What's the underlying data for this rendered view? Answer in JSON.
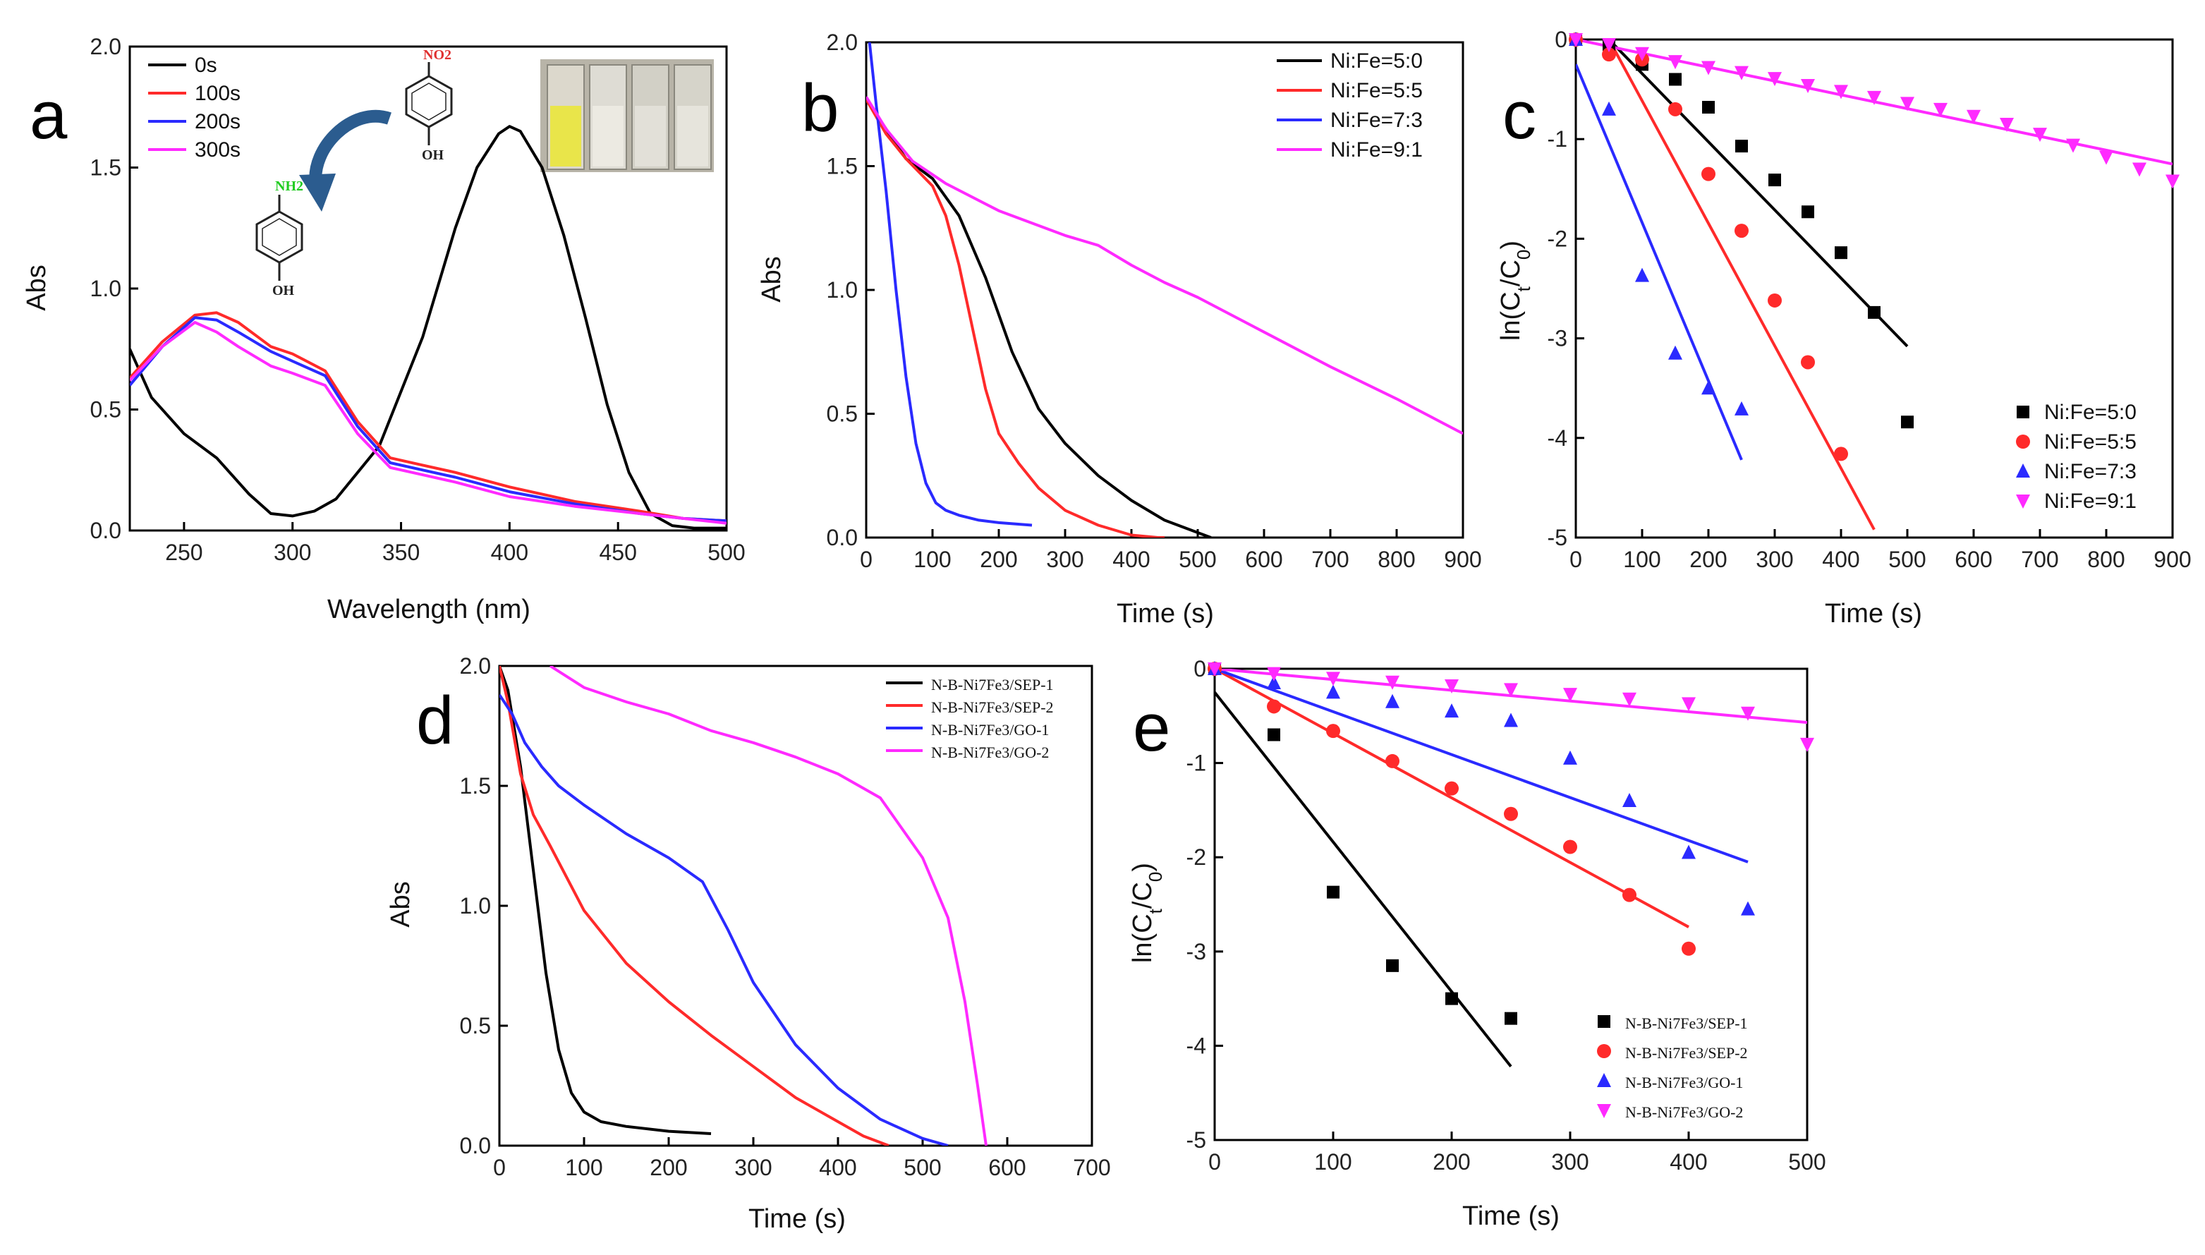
{
  "panels": {
    "a": {
      "letter": "a",
      "xlabel": "Wavelength (nm)",
      "ylabel": "Abs",
      "xlim": [
        225,
        500
      ],
      "ylim": [
        0,
        2.0
      ],
      "xticks": [
        "250",
        "300",
        "350",
        "400",
        "450",
        "500"
      ],
      "yticks": [
        "0.0",
        "0.5",
        "1.0",
        "1.5",
        "2.0"
      ],
      "legend": [
        "0s",
        "100s",
        "200s",
        "300s"
      ],
      "inset": {
        "reactant_group": "NO2",
        "product_group": "NH2",
        "hydroxyl_label": "OH",
        "arrow_color": "#2b5c8f"
      }
    },
    "b": {
      "letter": "b",
      "xlabel": "Time (s)",
      "ylabel": "Abs",
      "xlim": [
        0,
        900
      ],
      "ylim": [
        0,
        2.0
      ],
      "xticks": [
        "0",
        "100",
        "200",
        "300",
        "400",
        "500",
        "600",
        "700",
        "800",
        "900"
      ],
      "yticks": [
        "0.0",
        "0.5",
        "1.0",
        "1.5",
        "2.0"
      ],
      "legend": [
        "Ni:Fe=5:0",
        "Ni:Fe=5:5",
        "Ni:Fe=7:3",
        "Ni:Fe=9:1"
      ]
    },
    "c": {
      "letter": "c",
      "xlabel": "Time (s)",
      "ylabel": "ln(Ct/C0)",
      "xlim": [
        0,
        900
      ],
      "ylim": [
        -5,
        0
      ],
      "xticks": [
        "0",
        "100",
        "200",
        "300",
        "400",
        "500",
        "600",
        "700",
        "800",
        "900"
      ],
      "yticks": [
        "0",
        "-1",
        "-2",
        "-3",
        "-4",
        "-5"
      ],
      "legend": [
        "Ni:Fe=5:0",
        "Ni:Fe=5:5",
        "Ni:Fe=7:3",
        "Ni:Fe=9:1"
      ]
    },
    "d": {
      "letter": "d",
      "xlabel": "Time (s)",
      "ylabel": "Abs",
      "xlim": [
        0,
        700
      ],
      "ylim": [
        0,
        2.0
      ],
      "xticks": [
        "0",
        "100",
        "200",
        "300",
        "400",
        "500",
        "600",
        "700"
      ],
      "yticks": [
        "0.0",
        "0.5",
        "1.0",
        "1.5",
        "2.0"
      ],
      "legend": [
        "N-B-Ni7Fe3/SEP-1",
        "N-B-Ni7Fe3/SEP-2",
        "N-B-Ni7Fe3/GO-1",
        "N-B-Ni7Fe3/GO-2"
      ]
    },
    "e": {
      "letter": "e",
      "xlabel": "Time (s)",
      "ylabel": "ln(Ct/C0)",
      "xlim": [
        0,
        500
      ],
      "ylim": [
        -5,
        0
      ],
      "xticks": [
        "0",
        "100",
        "200",
        "300",
        "400",
        "500"
      ],
      "yticks": [
        "0",
        "-1",
        "-2",
        "-3",
        "-4",
        "-5"
      ],
      "legend": [
        "N-B-Ni7Fe3/SEP-1",
        "N-B-Ni7Fe3/SEP-2",
        "N-B-Ni7Fe3/GO-1",
        "N-B-Ni7Fe3/GO-2"
      ]
    }
  },
  "colors": {
    "black": "#000000",
    "red": "#ff2a2a",
    "blue": "#2a2aff",
    "magenta": "#ff2aff"
  },
  "chart_data": [
    {
      "panel": "a",
      "type": "line",
      "title": "",
      "xlabel": "Wavelength (nm)",
      "ylabel": "Abs",
      "xlim": [
        225,
        500
      ],
      "ylim": [
        0,
        2.0
      ],
      "series": [
        {
          "name": "0s",
          "color": "#000000",
          "x": [
            225,
            235,
            250,
            265,
            280,
            290,
            300,
            310,
            320,
            340,
            360,
            375,
            385,
            395,
            400,
            405,
            415,
            425,
            435,
            445,
            455,
            465,
            475,
            485,
            500
          ],
          "y": [
            0.75,
            0.55,
            0.4,
            0.3,
            0.15,
            0.07,
            0.06,
            0.08,
            0.13,
            0.35,
            0.8,
            1.25,
            1.5,
            1.64,
            1.67,
            1.65,
            1.5,
            1.22,
            0.88,
            0.52,
            0.24,
            0.07,
            0.02,
            0.01,
            0.01
          ]
        },
        {
          "name": "100s",
          "color": "#ff2a2a",
          "x": [
            225,
            240,
            255,
            265,
            275,
            290,
            300,
            315,
            330,
            345,
            360,
            375,
            400,
            430,
            460,
            480,
            500
          ],
          "y": [
            0.63,
            0.78,
            0.89,
            0.9,
            0.86,
            0.76,
            0.73,
            0.66,
            0.45,
            0.3,
            0.27,
            0.24,
            0.18,
            0.12,
            0.08,
            0.05,
            0.04
          ]
        },
        {
          "name": "200s",
          "color": "#2a2aff",
          "x": [
            225,
            240,
            255,
            265,
            275,
            290,
            300,
            315,
            330,
            345,
            360,
            375,
            400,
            430,
            460,
            480,
            500
          ],
          "y": [
            0.6,
            0.76,
            0.88,
            0.87,
            0.82,
            0.74,
            0.7,
            0.64,
            0.43,
            0.28,
            0.25,
            0.22,
            0.16,
            0.11,
            0.07,
            0.05,
            0.04
          ]
        },
        {
          "name": "300s",
          "color": "#ff2aff",
          "x": [
            225,
            240,
            255,
            265,
            275,
            290,
            300,
            315,
            330,
            345,
            360,
            375,
            400,
            430,
            460,
            480,
            500
          ],
          "y": [
            0.62,
            0.76,
            0.86,
            0.82,
            0.76,
            0.68,
            0.65,
            0.6,
            0.4,
            0.26,
            0.23,
            0.2,
            0.14,
            0.1,
            0.07,
            0.05,
            0.03
          ]
        }
      ]
    },
    {
      "panel": "b",
      "type": "line",
      "title": "",
      "xlabel": "Time (s)",
      "ylabel": "Abs",
      "xlim": [
        0,
        900
      ],
      "ylim": [
        0,
        2.0
      ],
      "series": [
        {
          "name": "Ni:Fe=5:0",
          "color": "#000000",
          "x": [
            0,
            30,
            60,
            100,
            140,
            180,
            220,
            260,
            300,
            350,
            400,
            450,
            500,
            520
          ],
          "y": [
            1.77,
            1.65,
            1.53,
            1.45,
            1.3,
            1.05,
            0.75,
            0.52,
            0.38,
            0.25,
            0.15,
            0.07,
            0.02,
            0.0
          ]
        },
        {
          "name": "Ni:Fe=5:5",
          "color": "#ff2a2a",
          "x": [
            0,
            30,
            60,
            100,
            120,
            140,
            160,
            180,
            200,
            230,
            260,
            300,
            350,
            400,
            440,
            450
          ],
          "y": [
            1.77,
            1.63,
            1.53,
            1.42,
            1.3,
            1.1,
            0.85,
            0.6,
            0.42,
            0.3,
            0.2,
            0.11,
            0.05,
            0.01,
            0.0,
            0.0
          ]
        },
        {
          "name": "Ni:Fe=7:3",
          "color": "#2a2aff",
          "x": [
            5,
            15,
            30,
            45,
            60,
            75,
            90,
            105,
            120,
            140,
            170,
            200,
            250
          ],
          "y": [
            2.0,
            1.75,
            1.4,
            1.0,
            0.65,
            0.38,
            0.22,
            0.14,
            0.11,
            0.09,
            0.07,
            0.06,
            0.05
          ]
        },
        {
          "name": "Ni:Fe=9:1",
          "color": "#ff2aff",
          "x": [
            0,
            30,
            70,
            120,
            200,
            300,
            350,
            400,
            450,
            500,
            600,
            700,
            800,
            900
          ],
          "y": [
            1.78,
            1.65,
            1.52,
            1.43,
            1.32,
            1.22,
            1.18,
            1.1,
            1.03,
            0.97,
            0.83,
            0.69,
            0.56,
            0.42
          ]
        }
      ]
    },
    {
      "panel": "c",
      "type": "scatter",
      "title": "",
      "xlabel": "Time (s)",
      "ylabel": "ln(Ct/C0)",
      "xlim": [
        0,
        900
      ],
      "ylim": [
        -5,
        0
      ],
      "series": [
        {
          "name": "Ni:Fe=5:0",
          "color": "#000000",
          "marker": "square",
          "x": [
            0,
            50,
            100,
            150,
            200,
            250,
            300,
            350,
            400,
            450,
            500
          ],
          "y": [
            0,
            -0.05,
            -0.25,
            -0.4,
            -0.68,
            -1.07,
            -1.41,
            -1.73,
            -2.14,
            -2.74,
            -3.84
          ],
          "fit": {
            "x": [
              50,
              500
            ],
            "y": [
              0.0,
              -3.08
            ]
          }
        },
        {
          "name": "Ni:Fe=5:5",
          "color": "#ff2a2a",
          "marker": "circle",
          "x": [
            0,
            50,
            100,
            150,
            200,
            250,
            300,
            350,
            400
          ],
          "y": [
            0,
            -0.15,
            -0.2,
            -0.7,
            -1.35,
            -1.92,
            -2.62,
            -3.24,
            -4.16
          ],
          "fit": {
            "x": [
              50,
              450
            ],
            "y": [
              0.0,
              -4.92
            ]
          }
        },
        {
          "name": "Ni:Fe=7:3",
          "color": "#2a2aff",
          "marker": "triangle-up",
          "x": [
            0,
            50,
            100,
            150,
            200,
            250
          ],
          "y": [
            0,
            -0.7,
            -2.37,
            -3.15,
            -3.5,
            -3.71
          ],
          "fit": {
            "x": [
              0,
              250
            ],
            "y": [
              -0.25,
              -4.22
            ]
          }
        },
        {
          "name": "Ni:Fe=9:1",
          "color": "#ff2aff",
          "marker": "triangle-down",
          "x": [
            0,
            50,
            100,
            150,
            200,
            250,
            300,
            350,
            400,
            450,
            500,
            550,
            600,
            650,
            700,
            750,
            800,
            850,
            900
          ],
          "y": [
            0,
            -0.05,
            -0.14,
            -0.22,
            -0.28,
            -0.33,
            -0.39,
            -0.46,
            -0.52,
            -0.58,
            -0.64,
            -0.7,
            -0.77,
            -0.85,
            -0.95,
            -1.06,
            -1.18,
            -1.3,
            -1.42
          ],
          "fit": {
            "x": [
              0,
              900
            ],
            "y": [
              0.0,
              -1.25
            ]
          }
        }
      ]
    },
    {
      "panel": "d",
      "type": "line",
      "title": "",
      "xlabel": "Time (s)",
      "ylabel": "Abs",
      "xlim": [
        0,
        700
      ],
      "ylim": [
        0,
        2.0
      ],
      "series": [
        {
          "name": "N-B-Ni7Fe3/SEP-1",
          "color": "#000000",
          "x": [
            0,
            10,
            25,
            40,
            55,
            70,
            85,
            100,
            120,
            150,
            200,
            250
          ],
          "y": [
            2.0,
            1.9,
            1.58,
            1.15,
            0.72,
            0.4,
            0.22,
            0.14,
            0.1,
            0.08,
            0.06,
            0.05
          ]
        },
        {
          "name": "N-B-Ni7Fe3/SEP-2",
          "color": "#ff2a2a",
          "x": [
            0,
            10,
            25,
            40,
            60,
            100,
            150,
            200,
            250,
            300,
            350,
            400,
            430,
            460
          ],
          "y": [
            2.0,
            1.85,
            1.55,
            1.38,
            1.25,
            0.98,
            0.76,
            0.6,
            0.46,
            0.33,
            0.2,
            0.1,
            0.04,
            0.0
          ]
        },
        {
          "name": "N-B-Ni7Fe3/GO-1",
          "color": "#2a2aff",
          "x": [
            0,
            15,
            30,
            50,
            70,
            100,
            150,
            200,
            240,
            270,
            300,
            350,
            400,
            450,
            500,
            530
          ],
          "y": [
            1.88,
            1.8,
            1.68,
            1.58,
            1.5,
            1.42,
            1.3,
            1.2,
            1.1,
            0.9,
            0.68,
            0.42,
            0.24,
            0.11,
            0.03,
            0.0
          ]
        },
        {
          "name": "N-B-Ni7Fe3/GO-2",
          "color": "#ff2aff",
          "x": [
            60,
            100,
            150,
            200,
            250,
            300,
            350,
            400,
            450,
            500,
            530,
            550,
            565,
            575
          ],
          "y": [
            2.0,
            1.91,
            1.85,
            1.8,
            1.73,
            1.68,
            1.62,
            1.55,
            1.45,
            1.2,
            0.95,
            0.6,
            0.25,
            0.0
          ]
        }
      ]
    },
    {
      "panel": "e",
      "type": "scatter",
      "title": "",
      "xlabel": "Time (s)",
      "ylabel": "ln(Ct/C0)",
      "xlim": [
        0,
        500
      ],
      "ylim": [
        -5,
        0
      ],
      "series": [
        {
          "name": "N-B-Ni7Fe3/SEP-1",
          "color": "#000000",
          "marker": "square",
          "x": [
            0,
            50,
            100,
            150,
            200,
            250
          ],
          "y": [
            0,
            -0.7,
            -2.37,
            -3.15,
            -3.5,
            -3.71
          ],
          "fit": {
            "x": [
              0,
              250
            ],
            "y": [
              -0.25,
              -4.22
            ]
          }
        },
        {
          "name": "N-B-Ni7Fe3/SEP-2",
          "color": "#ff2a2a",
          "marker": "circle",
          "x": [
            0,
            50,
            100,
            150,
            200,
            250,
            300,
            350,
            400
          ],
          "y": [
            0,
            -0.4,
            -0.66,
            -0.98,
            -1.27,
            -1.54,
            -1.89,
            -2.4,
            -2.97
          ],
          "fit": {
            "x": [
              0,
              400
            ],
            "y": [
              0.0,
              -2.74
            ]
          }
        },
        {
          "name": "N-B-Ni7Fe3/GO-1",
          "color": "#2a2aff",
          "marker": "triangle-up",
          "x": [
            0,
            50,
            100,
            150,
            200,
            250,
            300,
            350,
            400,
            450
          ],
          "y": [
            0,
            -0.15,
            -0.25,
            -0.35,
            -0.45,
            -0.55,
            -0.95,
            -1.4,
            -1.95,
            -2.55
          ],
          "fit": {
            "x": [
              0,
              450
            ],
            "y": [
              0.0,
              -2.05
            ]
          }
        },
        {
          "name": "N-B-Ni7Fe3/GO-2",
          "color": "#ff2aff",
          "marker": "triangle-down",
          "x": [
            0,
            50,
            100,
            150,
            200,
            250,
            300,
            350,
            400,
            450,
            500
          ],
          "y": [
            0,
            -0.05,
            -0.1,
            -0.14,
            -0.18,
            -0.22,
            -0.27,
            -0.32,
            -0.37,
            -0.47,
            -0.8
          ],
          "fit": {
            "x": [
              0,
              500
            ],
            "y": [
              0.0,
              -0.57
            ]
          }
        }
      ]
    }
  ]
}
